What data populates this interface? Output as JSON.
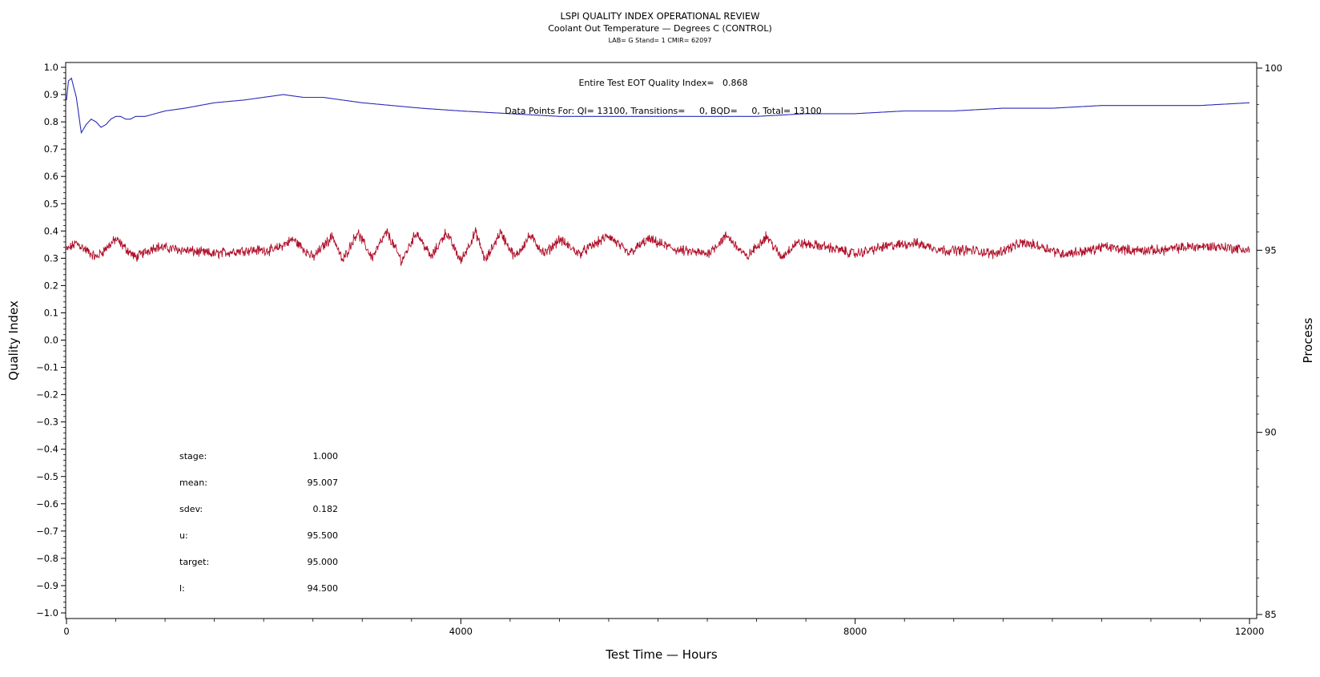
{
  "chart_data": {
    "type": "line",
    "title": "LSPI QUALITY INDEX OPERATIONAL REVIEW",
    "subtitle": "Coolant Out Temperature — Degrees C (CONTROL)",
    "subtitle2": "LAB= G Stand= 1 CMIR= 62097",
    "xlabel": "Test Time — Hours",
    "ylabel": "Quality Index",
    "y2label": "Process",
    "xlim": [
      0,
      12000
    ],
    "ylim": [
      -1.0,
      1.0
    ],
    "y2lim": [
      85,
      100
    ],
    "xticks": [
      "0",
      "4000",
      "8000",
      "12000"
    ],
    "yticks": [
      "1.0",
      "0.9",
      "0.8",
      "0.7",
      "0.6",
      "0.5",
      "0.4",
      "0.3",
      "0.2",
      "0.1",
      "0.0",
      "−0.1",
      "−0.2",
      "−0.3",
      "−0.4",
      "−0.5",
      "−0.6",
      "−0.7",
      "−0.8",
      "−0.9",
      "−1.0"
    ],
    "y2ticks": [
      "100",
      "95",
      "90",
      "85"
    ],
    "annotations": {
      "quality_index": "Entire Test EOT Quality Index=   0.868",
      "data_points": "Data Points For: QI= 13100, Transitions=     0, BQD=     0, Total= 13100"
    },
    "stats": [
      {
        "label": "stage:",
        "value": "1.000"
      },
      {
        "label": "mean:",
        "value": "95.007"
      },
      {
        "label": "sdev:",
        "value": "0.182"
      },
      {
        "label": "u:",
        "value": "95.500"
      },
      {
        "label": "target:",
        "value": "95.000"
      },
      {
        "label": "l:",
        "value": "94.500"
      }
    ],
    "series": [
      {
        "axis": "left",
        "color": "#2b2bb8",
        "points": [
          [
            0,
            0.88
          ],
          [
            20,
            0.95
          ],
          [
            50,
            0.96
          ],
          [
            100,
            0.89
          ],
          [
            150,
            0.76
          ],
          [
            200,
            0.79
          ],
          [
            250,
            0.81
          ],
          [
            300,
            0.8
          ],
          [
            350,
            0.78
          ],
          [
            400,
            0.79
          ],
          [
            450,
            0.81
          ],
          [
            500,
            0.82
          ],
          [
            550,
            0.82
          ],
          [
            600,
            0.81
          ],
          [
            650,
            0.81
          ],
          [
            700,
            0.82
          ],
          [
            800,
            0.82
          ],
          [
            900,
            0.83
          ],
          [
            1000,
            0.84
          ],
          [
            1200,
            0.85
          ],
          [
            1500,
            0.87
          ],
          [
            1800,
            0.88
          ],
          [
            2000,
            0.89
          ],
          [
            2200,
            0.9
          ],
          [
            2400,
            0.89
          ],
          [
            2600,
            0.89
          ],
          [
            2800,
            0.88
          ],
          [
            3000,
            0.87
          ],
          [
            3300,
            0.86
          ],
          [
            3600,
            0.85
          ],
          [
            4000,
            0.84
          ],
          [
            4500,
            0.83
          ],
          [
            5000,
            0.82
          ],
          [
            5500,
            0.82
          ],
          [
            6000,
            0.82
          ],
          [
            6500,
            0.82
          ],
          [
            7000,
            0.82
          ],
          [
            7500,
            0.83
          ],
          [
            8000,
            0.83
          ],
          [
            8500,
            0.84
          ],
          [
            9000,
            0.84
          ],
          [
            9500,
            0.85
          ],
          [
            10000,
            0.85
          ],
          [
            10500,
            0.86
          ],
          [
            11000,
            0.86
          ],
          [
            11500,
            0.86
          ],
          [
            12000,
            0.87
          ]
        ]
      },
      {
        "axis": "right",
        "color": "#b0102a",
        "mean": 95.007,
        "sdev": 0.182,
        "n_points": 13100,
        "envelope": [
          [
            0,
            95.0
          ],
          [
            100,
            95.2
          ],
          [
            300,
            94.8
          ],
          [
            500,
            95.3
          ],
          [
            700,
            94.8
          ],
          [
            900,
            95.1
          ],
          [
            1200,
            95.0
          ],
          [
            1500,
            94.9
          ],
          [
            1800,
            95.0
          ],
          [
            2100,
            95.0
          ],
          [
            2300,
            95.3
          ],
          [
            2500,
            94.8
          ],
          [
            2700,
            95.4
          ],
          [
            2800,
            94.7
          ],
          [
            2950,
            95.5
          ],
          [
            3100,
            94.8
          ],
          [
            3250,
            95.5
          ],
          [
            3400,
            94.7
          ],
          [
            3550,
            95.5
          ],
          [
            3700,
            94.8
          ],
          [
            3850,
            95.5
          ],
          [
            4000,
            94.7
          ],
          [
            4150,
            95.5
          ],
          [
            4250,
            94.7
          ],
          [
            4400,
            95.5
          ],
          [
            4550,
            94.8
          ],
          [
            4700,
            95.4
          ],
          [
            4850,
            94.9
          ],
          [
            5000,
            95.3
          ],
          [
            5200,
            94.9
          ],
          [
            5500,
            95.4
          ],
          [
            5700,
            94.9
          ],
          [
            5900,
            95.3
          ],
          [
            6200,
            95.0
          ],
          [
            6500,
            94.9
          ],
          [
            6700,
            95.4
          ],
          [
            6900,
            94.8
          ],
          [
            7100,
            95.4
          ],
          [
            7250,
            94.8
          ],
          [
            7400,
            95.2
          ],
          [
            7700,
            95.1
          ],
          [
            8000,
            94.9
          ],
          [
            8300,
            95.1
          ],
          [
            8600,
            95.2
          ],
          [
            8900,
            95.0
          ],
          [
            9200,
            95.0
          ],
          [
            9400,
            94.9
          ],
          [
            9700,
            95.2
          ],
          [
            9900,
            95.1
          ],
          [
            10100,
            94.9
          ],
          [
            10400,
            95.0
          ],
          [
            10500,
            95.1
          ],
          [
            10800,
            95.0
          ],
          [
            11100,
            95.0
          ],
          [
            11400,
            95.1
          ],
          [
            11700,
            95.1
          ],
          [
            12000,
            95.0
          ]
        ]
      }
    ]
  }
}
